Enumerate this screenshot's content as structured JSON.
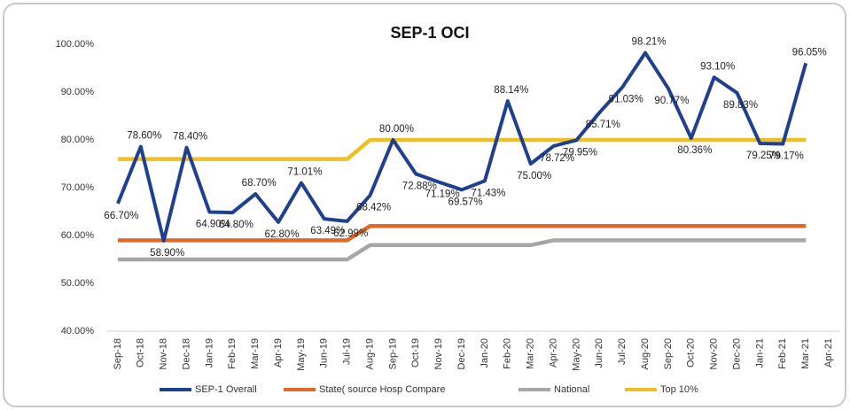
{
  "chart_data": {
    "type": "line",
    "title": "SEP-1 OCI",
    "categories": [
      "Sep-18",
      "Oct-18",
      "Nov-18",
      "Dec-18",
      "Jan-19",
      "Feb-19",
      "Mar-19",
      "Apr-19",
      "May-19",
      "Jun-19",
      "Jul-19",
      "Aug-19",
      "Sep-19",
      "Oct-19",
      "Nov-19",
      "Dec-19",
      "Jan-20",
      "Feb-20",
      "Mar-20",
      "Apr-20",
      "May-20",
      "Jun-20",
      "Jul-20",
      "Aug-20",
      "Sep-20",
      "Oct-20",
      "Nov-20",
      "Dec-20",
      "Jan-21",
      "Feb-21",
      "Mar-21",
      "Apr-21"
    ],
    "series": [
      {
        "name": "SEP-1 Overall",
        "color": "#1f3f8f",
        "values": [
          66.7,
          78.6,
          58.9,
          78.4,
          64.9,
          64.8,
          68.7,
          62.8,
          71.01,
          63.49,
          62.99,
          68.42,
          80.0,
          72.88,
          71.19,
          69.57,
          71.43,
          88.14,
          75.0,
          78.72,
          79.95,
          85.71,
          91.03,
          98.21,
          90.77,
          80.36,
          93.1,
          89.83,
          79.25,
          79.17,
          96.05,
          null
        ],
        "value_labels": [
          "66.70%",
          "78.60%",
          "58.90%",
          "78.40%",
          "64.90%",
          "64.80%",
          "68.70%",
          "62.80%",
          "71.01%",
          "63.49%",
          "62.99%",
          "68.42%",
          "80.00%",
          "72.88%",
          "71.19%",
          "69.57%",
          "71.43%",
          "88.14%",
          "75.00%",
          "78.72%",
          "79.95%",
          "85.71%",
          "91.03%",
          "98.21%",
          "90.77%",
          "80.36%",
          "93.10%",
          "89.83%",
          "79.25%",
          "79.17%",
          "96.05%",
          null
        ]
      },
      {
        "name": "State( source Hosp Compare",
        "color": "#e06a2a",
        "values": [
          59,
          59,
          59,
          59,
          59,
          59,
          59,
          59,
          59,
          59,
          59,
          62,
          62,
          62,
          62,
          62,
          62,
          62,
          62,
          62,
          62,
          62,
          62,
          62,
          62,
          62,
          62,
          62,
          62,
          62,
          62,
          null
        ]
      },
      {
        "name": "National",
        "color": "#a6a6a6",
        "values": [
          55,
          55,
          55,
          55,
          55,
          55,
          55,
          55,
          55,
          55,
          55,
          58,
          58,
          58,
          58,
          58,
          58,
          58,
          58,
          59,
          59,
          59,
          59,
          59,
          59,
          59,
          59,
          59,
          59,
          59,
          59,
          null
        ]
      },
      {
        "name": "Top 10%",
        "color": "#f0c020",
        "values": [
          76,
          76,
          76,
          76,
          76,
          76,
          76,
          76,
          76,
          76,
          76,
          80,
          80,
          80,
          80,
          80,
          80,
          80,
          80,
          80,
          80,
          80,
          80,
          80,
          80,
          80,
          80,
          80,
          80,
          80,
          80,
          null
        ]
      }
    ],
    "ylim": [
      40,
      100
    ],
    "yticks": [
      {
        "value": 40,
        "label": "40.00%"
      },
      {
        "value": 50,
        "label": "50.00%"
      },
      {
        "value": 60,
        "label": "60.00%"
      },
      {
        "value": 70,
        "label": "70.00%"
      },
      {
        "value": 80,
        "label": "80.00%"
      },
      {
        "value": 90,
        "label": "90.00%"
      },
      {
        "value": 100,
        "label": "100.00%"
      }
    ],
    "legend": "bottom"
  }
}
